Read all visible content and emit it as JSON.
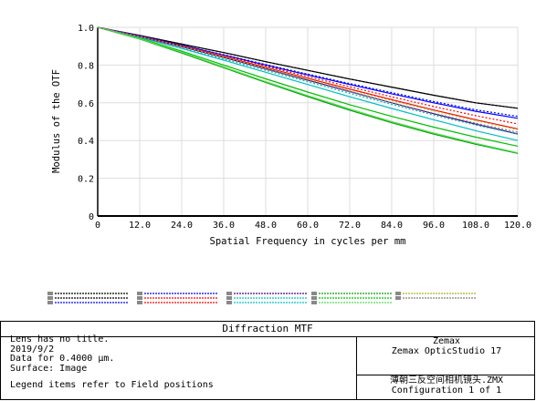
{
  "chart_data": {
    "type": "line",
    "title": "",
    "xlabel": "Spatial Frequency in cycles per mm",
    "ylabel": "Modulus of the OTF",
    "xlim": [
      0,
      120
    ],
    "ylim": [
      0,
      1
    ],
    "x_ticks": [
      "0",
      "12.0",
      "24.0",
      "36.0",
      "48.0",
      "60.0",
      "72.0",
      "84.0",
      "96.0",
      "108.0",
      "120.0"
    ],
    "y_ticks": [
      "0",
      "0.2",
      "0.4",
      "0.6",
      "0.8",
      "1.0"
    ],
    "grid": true,
    "x": [
      0,
      12,
      24,
      36,
      48,
      60,
      72,
      84,
      96,
      108,
      120
    ],
    "series": [
      {
        "color": "#000000",
        "style": "solid",
        "values": [
          1.0,
          0.957,
          0.911,
          0.866,
          0.818,
          0.772,
          0.726,
          0.683,
          0.64,
          0.6,
          0.571
        ]
      },
      {
        "color": "#000000",
        "style": "dashed",
        "values": [
          1.0,
          0.957,
          0.911,
          0.866,
          0.818,
          0.772,
          0.726,
          0.683,
          0.64,
          0.6,
          0.571
        ]
      },
      {
        "color": "#0000ff",
        "style": "solid",
        "values": [
          1.0,
          0.955,
          0.905,
          0.853,
          0.8,
          0.748,
          0.697,
          0.648,
          0.6,
          0.555,
          0.518
        ]
      },
      {
        "color": "#0000ff",
        "style": "dashed",
        "values": [
          1.0,
          0.955,
          0.905,
          0.855,
          0.803,
          0.752,
          0.702,
          0.654,
          0.607,
          0.563,
          0.528
        ]
      },
      {
        "color": "#ff0000",
        "style": "solid",
        "values": [
          1.0,
          0.952,
          0.9,
          0.845,
          0.788,
          0.73,
          0.673,
          0.617,
          0.562,
          0.51,
          0.462
        ]
      },
      {
        "color": "#ff0000",
        "style": "dashed",
        "values": [
          1.0,
          0.953,
          0.903,
          0.85,
          0.794,
          0.739,
          0.685,
          0.632,
          0.58,
          0.532,
          0.488
        ]
      },
      {
        "color": "#4b0082",
        "style": "solid",
        "values": [
          1.0,
          0.95,
          0.897,
          0.84,
          0.78,
          0.72,
          0.66,
          0.6,
          0.542,
          0.487,
          0.435
        ]
      },
      {
        "color": "#00c0c0",
        "style": "solid",
        "values": [
          1.0,
          0.946,
          0.888,
          0.826,
          0.762,
          0.697,
          0.632,
          0.57,
          0.51,
          0.452,
          0.4
        ]
      },
      {
        "color": "#00c0c0",
        "style": "dashed",
        "values": [
          1.0,
          0.948,
          0.892,
          0.833,
          0.772,
          0.711,
          0.65,
          0.592,
          0.535,
          0.482,
          0.434
        ]
      },
      {
        "color": "#00a000",
        "style": "solid",
        "values": [
          1.0,
          0.938,
          0.864,
          0.786,
          0.708,
          0.633,
          0.561,
          0.494,
          0.434,
          0.38,
          0.332
        ]
      },
      {
        "color": "#00c000",
        "style": "solid",
        "values": [
          1.0,
          0.942,
          0.874,
          0.8,
          0.727,
          0.657,
          0.59,
          0.528,
          0.471,
          0.418,
          0.37
        ]
      },
      {
        "color": "#55dd55",
        "style": "solid",
        "values": [
          1.0,
          0.94,
          0.868,
          0.79,
          0.712,
          0.638,
          0.567,
          0.5,
          0.44,
          0.385,
          0.335
        ]
      },
      {
        "color": "#b0b020",
        "style": "dashed",
        "values": [
          1.0,
          0.951,
          0.899,
          0.843,
          0.785,
          0.726,
          0.668,
          0.612,
          0.558,
          0.506,
          0.458
        ]
      },
      {
        "color": "#808080",
        "style": "dashed",
        "values": [
          1.0,
          0.949,
          0.895,
          0.838,
          0.778,
          0.718,
          0.658,
          0.6,
          0.545,
          0.492,
          0.444
        ]
      }
    ]
  },
  "legend_colors": [
    "#000000",
    "#000000",
    "#0000ff",
    "#0000ff",
    "#ff0000",
    "#ff0000",
    "#4b0082",
    "#00c0c0",
    "#00c0c0",
    "#00a000",
    "#00c000",
    "#55dd55",
    "#b0b020",
    "#808080"
  ],
  "info": {
    "title": "Diffraction MTF",
    "left_lines": "Lens has no title.\n2019/9/2\nData for 0.4000 μm.\nSurface: Image",
    "legend_note": "Legend items refer to Field positions",
    "company": "Zemax",
    "product": "Zemax OpticStudio 17",
    "file": "薄朝三反空间相机镜头.ZMX",
    "config": "Configuration 1 of 1"
  }
}
